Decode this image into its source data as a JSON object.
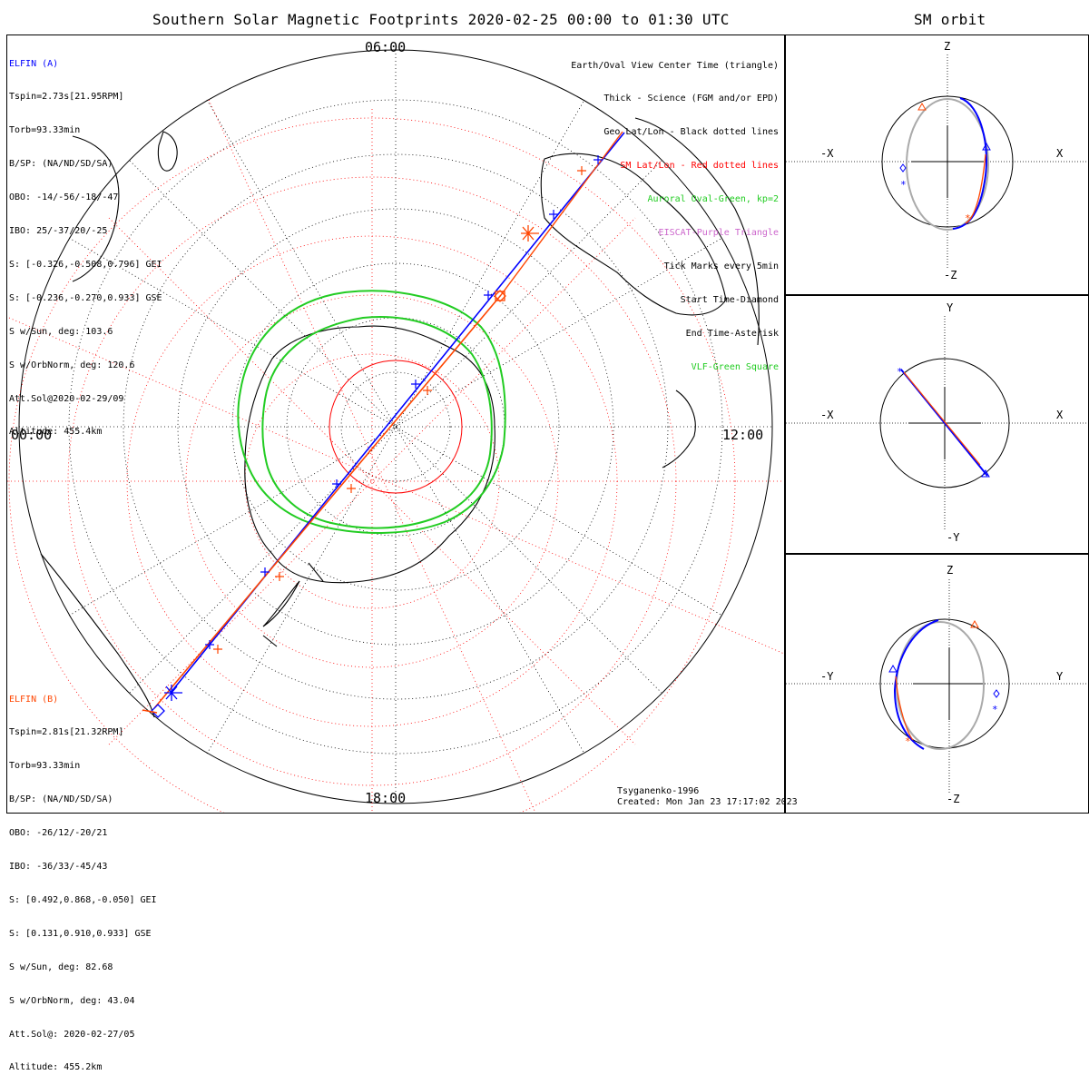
{
  "title": "Southern Solar Magnetic Footprints 2020-02-25 00:00 to 01:30 UTC",
  "orbit_title": "SM orbit",
  "hours": {
    "top": "06:00",
    "left": "00:00",
    "right": "12:00",
    "bottom": "18:00"
  },
  "elfin_a": {
    "name": "ELFIN (A)",
    "color": "#0000ff",
    "lines": [
      "Tspin=2.73s[21.95RPM]",
      "Torb=93.33min",
      "B/SP: (NA/ND/SD/SA)",
      "OBO: -14/-56/-18/-47",
      "IBO: 25/-37/20/-25",
      "S: [-0.326,-0.508,0.796] GEI",
      "S: [-0.236,-0.270,0.933] GSE",
      "S w/Sun, deg: 103.6",
      "S w/OrbNorm, deg: 120.6",
      "Att.Sol@2020-02-29/09",
      "Altitude: 455.4km"
    ]
  },
  "elfin_b": {
    "name": "ELFIN (B)",
    "color": "#ff4500",
    "lines": [
      "Tspin=2.81s[21.32RPM]",
      "Torb=93.33min",
      "B/SP: (NA/ND/SD/SA)",
      "OBO: -26/12/-20/21",
      "IBO: -36/33/-45/43",
      "S: [0.492,0.868,-0.050] GEI",
      "S: [0.131,0.910,0.933] GSE",
      "S w/Sun, deg: 82.68",
      "S w/OrbNorm, deg: 43.04",
      "Att.Sol@: 2020-02-27/05",
      "Altitude: 455.2km"
    ]
  },
  "legend": [
    {
      "text": "Earth/Oval View Center Time (triangle)",
      "color": "#000000"
    },
    {
      "text": "Thick - Science (FGM and/or EPD)",
      "color": "#000000"
    },
    {
      "text": "Geo Lat/Lon - Black dotted lines",
      "color": "#000000"
    },
    {
      "text": "SM Lat/Lon - Red dotted lines",
      "color": "#ff0000"
    },
    {
      "text": "Auroral Oval-Green, kp=2",
      "color": "#22cc22"
    },
    {
      "text": "EISCAT-Purple Triangle",
      "color": "#cc66cc"
    },
    {
      "text": "Tick Marks every 5min",
      "color": "#000000"
    },
    {
      "text": "Start Time-Diamond",
      "color": "#000000"
    },
    {
      "text": "End Time-Asterisk",
      "color": "#000000"
    },
    {
      "text": "VLF-Green Square",
      "color": "#22cc22"
    }
  ],
  "footer": {
    "model": "Tsyganenko-1996",
    "created": "Created: Mon Jan 23 17:17:02 2023"
  },
  "orbit_panels": [
    {
      "top": "Z",
      "bottom": "-Z",
      "left": "-X",
      "right": "X"
    },
    {
      "top": "Y",
      "bottom": "-Y",
      "left": "-X",
      "right": "X"
    },
    {
      "top": "Z",
      "bottom": "-Z",
      "left": "-Y",
      "right": "Y"
    }
  ],
  "colors": {
    "elfin_a": "#0000ff",
    "elfin_b": "#ff4500",
    "oval": "#22cc22",
    "sm_grid": "#ff0000",
    "geo_grid": "#000000"
  }
}
